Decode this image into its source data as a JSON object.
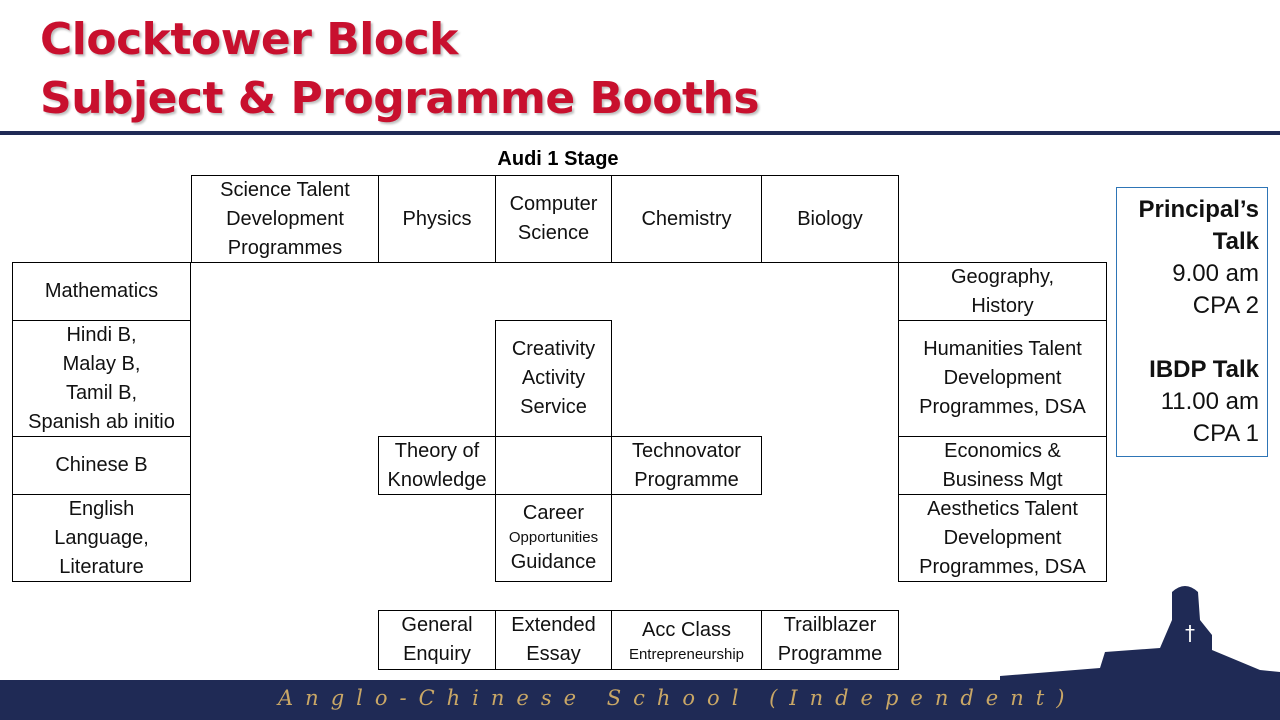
{
  "header": {
    "title_line1": "Clocktower Block",
    "title_line2": "Subject & Programme Booths"
  },
  "stage_label": "Audi 1 Stage",
  "booths": {
    "science_talent": "Science Talent\nDevelopment\nProgrammes",
    "physics": "Physics",
    "computer_science": "Computer\nScience",
    "chemistry": "Chemistry",
    "biology": "Biology",
    "mathematics": "Mathematics",
    "languages_b": "Hindi B,\nMalay B,\nTamil B,\nSpanish ab initio",
    "chinese_b": "Chinese B",
    "english": "English\nLanguage,\nLiterature",
    "geography_history": "Geography,\nHistory",
    "humanities_talent": "Humanities Talent\nDevelopment\nProgrammes, DSA",
    "economics": "Economics &\nBusiness Mgt",
    "aesthetics_talent": "Aesthetics Talent\nDevelopment\nProgrammes, DSA",
    "cas": "Creativity\nActivity\nService",
    "tok": "Theory of\nKnowledge",
    "technovator": "Technovator\nProgramme",
    "career_top": "Career",
    "career_mid": "Opportunities",
    "career_bottom": "Guidance",
    "general_enquiry": "General\nEnquiry",
    "extended_essay": "Extended\nEssay",
    "acc_class": "Acc Class",
    "acc_sub": "Entrepreneurship",
    "trailblazer": "Trailblazer\nProgramme"
  },
  "talks": [
    {
      "title": "Principal’s\nTalk",
      "time": "9.00 am",
      "venue": "CPA 2"
    },
    {
      "title": "IBDP Talk",
      "time": "11.00 am",
      "venue": "CPA 1"
    }
  ],
  "footer": {
    "text": "Anglo-Chinese School (Independent)"
  },
  "colors": {
    "title": "#c8102e",
    "navy": "#1f2a55",
    "footer_text": "#c9a766",
    "info_border": "#2e75b6"
  }
}
